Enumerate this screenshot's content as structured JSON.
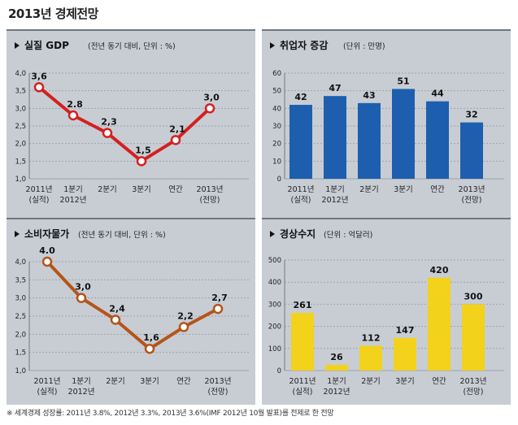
{
  "main_title": "2013년 경제전망",
  "footnote": "※ 세계경제 성장률: 2011년 3.8%, 2012년 3.3%, 2013년 3.6%(IMF 2012년 10월 발표)를 전제로 한 전망",
  "chart_data": [
    {
      "type": "line",
      "title": "실질 GDP",
      "subtitle": "(전년 동기 대비, 단위 : %)",
      "categories": [
        [
          "2011년",
          "(실적)"
        ],
        [
          "1분기",
          "2012년"
        ],
        [
          "2분기"
        ],
        [
          "3분기"
        ],
        [
          "연간"
        ],
        [
          "2013년",
          "(전망)"
        ]
      ],
      "values": [
        3.6,
        2.8,
        2.3,
        1.5,
        2.1,
        3.0
      ],
      "value_labels": [
        "3,6",
        "2.8",
        "2,3",
        "1,5",
        "2,1",
        "3,0"
      ],
      "yticks": [
        "4,0",
        "3,5",
        "3,0",
        "2,5",
        "2,0",
        "1,5",
        "1,0"
      ],
      "ylim": [
        1.0,
        4.0
      ],
      "color": "#d42020",
      "grid": true
    },
    {
      "type": "bar",
      "title": "취업자 증감",
      "subtitle": "(단위 : 만명)",
      "categories": [
        [
          "2011년",
          "(실적)"
        ],
        [
          "1분기",
          "2012년"
        ],
        [
          "2분기"
        ],
        [
          "3분기"
        ],
        [
          "연간"
        ],
        [
          "2013년",
          "(전망)"
        ]
      ],
      "values": [
        42,
        47,
        43,
        51,
        44,
        32
      ],
      "value_labels": [
        "42",
        "47",
        "43",
        "51",
        "44",
        "32"
      ],
      "yticks": [
        "60",
        "50",
        "40",
        "30",
        "20",
        "10",
        "0"
      ],
      "ylim": [
        0,
        60
      ],
      "color": "#1d5fae",
      "grid": true
    },
    {
      "type": "line",
      "title": "소비자물가",
      "subtitle": "(전년 동기 대비, 단위 : %)",
      "categories": [
        [
          "2011년",
          "(실적)"
        ],
        [
          "1분기",
          "2012년"
        ],
        [
          "2분기"
        ],
        [
          "3분기"
        ],
        [
          "연간"
        ],
        [
          "2013년",
          "(전망)"
        ]
      ],
      "values": [
        4.0,
        3.0,
        2.4,
        1.6,
        2.2,
        2.7
      ],
      "value_labels": [
        "4.0",
        "3,0",
        "2,4",
        "1,6",
        "2,2",
        "2,7"
      ],
      "yticks": [
        "4,0",
        "3,5",
        "3,0",
        "2,5",
        "2,0",
        "1,5",
        "1,0"
      ],
      "ylim": [
        1.0,
        4.0
      ],
      "color": "#b5541a",
      "grid": true
    },
    {
      "type": "bar",
      "title": "경상수지",
      "subtitle": "(단위 : 억달러)",
      "categories": [
        [
          "2011년",
          "(실적)"
        ],
        [
          "1분기",
          "2012년"
        ],
        [
          "2분기"
        ],
        [
          "3분기"
        ],
        [
          "연간"
        ],
        [
          "2013년",
          "(전망)"
        ]
      ],
      "values": [
        261,
        26,
        112,
        147,
        420,
        300
      ],
      "value_labels": [
        "261",
        "26",
        "112",
        "147",
        "420",
        "300"
      ],
      "yticks": [
        "500",
        "400",
        "300",
        "200",
        "100",
        "0"
      ],
      "ylim": [
        0,
        500
      ],
      "color": "#f2d21b",
      "grid": true
    }
  ]
}
